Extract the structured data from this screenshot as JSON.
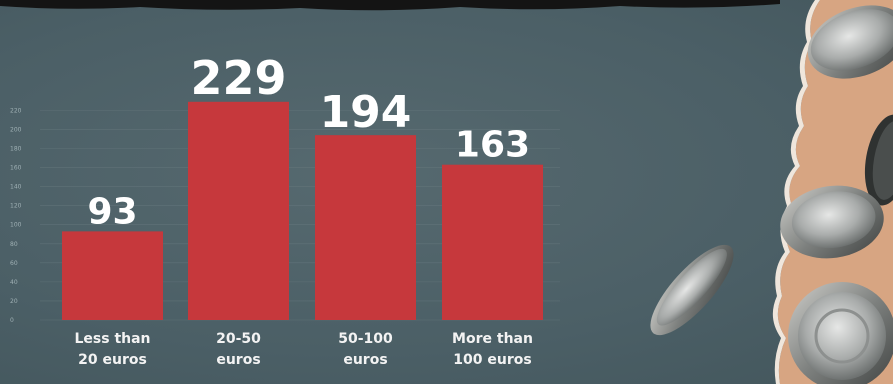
{
  "chart_data": {
    "type": "bar",
    "categories": [
      [
        "Less than",
        "20 euros"
      ],
      [
        "20-50",
        "euros"
      ],
      [
        "50-100",
        "euros"
      ],
      [
        "More than",
        "100 euros"
      ]
    ],
    "values": [
      93,
      229,
      194,
      163
    ],
    "value_labels": [
      "93",
      "229",
      "194",
      "163"
    ],
    "y_ticks": [
      "0",
      "20",
      "40",
      "60",
      "80",
      "100",
      "120",
      "140",
      "160",
      "180",
      "200",
      "220"
    ],
    "ylim": [
      0,
      240
    ],
    "grid": true,
    "bar_color": "#c6383c",
    "title": "",
    "xlabel": "",
    "ylabel": ""
  },
  "colors": {
    "background": "#4d6269",
    "paper": "#d7a582",
    "bar": "#c6383c",
    "text": "#ffffff"
  },
  "decor": {
    "torn_edge": "torn-paper-edge",
    "coins": [
      "euro-coin-icon",
      "euro-coin-icon",
      "euro-coin-icon",
      "euro-coin-icon",
      "euro-coin-icon"
    ]
  }
}
